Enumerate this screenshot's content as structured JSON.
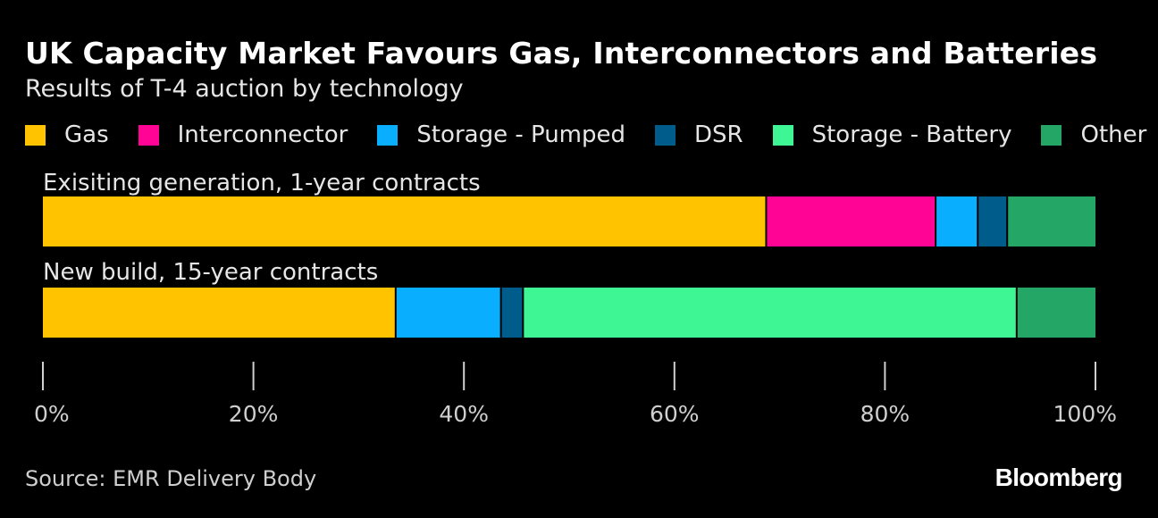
{
  "header": {
    "title": "UK Capacity Market Favours Gas, Interconnectors and Batteries",
    "subtitle": "Results of T-4 auction by technology"
  },
  "legend": [
    {
      "label": "Gas",
      "color": "#ffc300"
    },
    {
      "label": "Interconnector",
      "color": "#ff0495"
    },
    {
      "label": "Storage - Pumped",
      "color": "#0aaeff"
    },
    {
      "label": "DSR",
      "color": "#005c8a"
    },
    {
      "label": "Storage - Battery",
      "color": "#3ef794"
    },
    {
      "label": "Other",
      "color": "#24a667"
    }
  ],
  "chart_data": {
    "type": "bar",
    "orientation": "horizontal",
    "stacked": true,
    "title": "UK Capacity Market Favours Gas, Interconnectors and Batteries",
    "subtitle": "Results of T-4 auction by technology",
    "xlabel": "",
    "ylabel": "",
    "xlim": [
      0,
      100
    ],
    "x_ticks": [
      0,
      20,
      40,
      60,
      80,
      100
    ],
    "x_tick_labels": [
      "0%",
      "20%",
      "40%",
      "60%",
      "80%",
      "100%"
    ],
    "categories": [
      "Exisiting generation, 1-year contracts",
      "New build, 15-year contracts"
    ],
    "series": [
      {
        "name": "Gas",
        "color": "#ffc300",
        "values": [
          68.8,
          33.6
        ]
      },
      {
        "name": "Interconnector",
        "color": "#ff0495",
        "values": [
          16.1,
          0
        ]
      },
      {
        "name": "Storage - Pumped",
        "color": "#0aaeff",
        "values": [
          4.0,
          10.0
        ]
      },
      {
        "name": "DSR",
        "color": "#005c8a",
        "values": [
          2.8,
          2.1
        ]
      },
      {
        "name": "Storage - Battery",
        "color": "#3ef794",
        "values": [
          0,
          46.9
        ]
      },
      {
        "name": "Other",
        "color": "#24a667",
        "values": [
          8.3,
          7.4
        ]
      }
    ],
    "grid": false,
    "legend_position": "top"
  },
  "footer": {
    "source": "Source: EMR Delivery Body",
    "brand": "Bloomberg"
  }
}
